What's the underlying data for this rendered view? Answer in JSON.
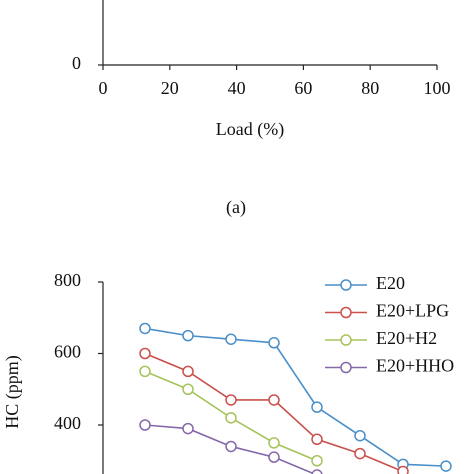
{
  "chart_data": [
    {
      "type": "line",
      "caption": "(a)",
      "xlabel": "Load (%)",
      "xlim": [
        0,
        100
      ],
      "xticks": [
        0,
        20,
        40,
        60,
        80,
        100
      ],
      "yticks": [
        0
      ]
    },
    {
      "type": "line",
      "ylabel": "HC (ppm)",
      "categories": [
        null,
        null,
        null,
        null,
        null,
        null,
        null,
        null
      ],
      "ylim": [
        0,
        800
      ],
      "yticks": [
        400,
        600,
        800
      ],
      "legend": "upper right",
      "series": [
        {
          "name": "E20",
          "color": "#4a8fc9",
          "values": [
            670,
            650,
            640,
            630,
            450,
            370,
            290,
            285
          ]
        },
        {
          "name": "E20+LPG",
          "color": "#c9504c",
          "values": [
            600,
            550,
            470,
            470,
            360,
            320,
            270,
            null
          ]
        },
        {
          "name": "E20+H2",
          "color": "#a6c35c",
          "values": [
            550,
            500,
            420,
            350,
            300,
            null,
            null,
            null
          ]
        },
        {
          "name": "E20+HHO",
          "color": "#8468a9",
          "values": [
            400,
            390,
            340,
            310,
            260,
            null,
            null,
            null
          ]
        }
      ]
    }
  ]
}
